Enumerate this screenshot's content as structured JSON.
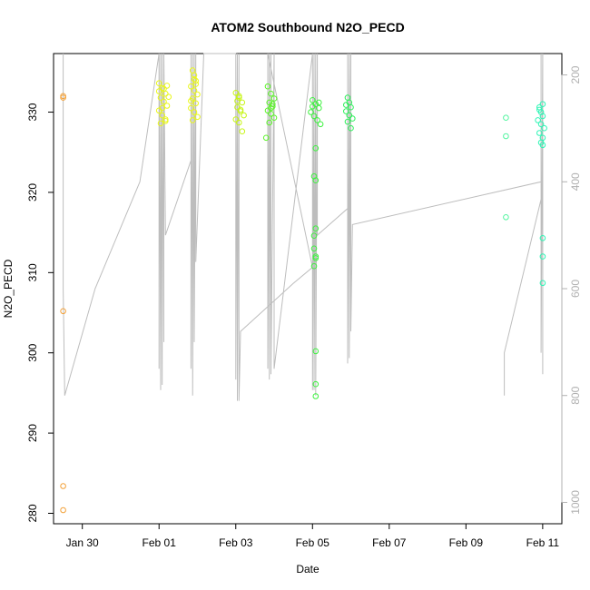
{
  "chart_data": {
    "type": "scatter",
    "title": "ATOM2 Southbound N2O_PECD",
    "xlabel": "Date",
    "ylabel": "N2O_PECD",
    "xlim": [
      "2016-01-29 06:00",
      "2016-02-11 12:00"
    ],
    "ylim": [
      278.7,
      337.3
    ],
    "y2lim": [
      1040,
      160
    ],
    "y2_reversed": true,
    "x_ticks": [
      {
        "value": "2016-01-30",
        "label": "Jan 30"
      },
      {
        "value": "2016-02-01",
        "label": "Feb 01"
      },
      {
        "value": "2016-02-03",
        "label": "Feb 03"
      },
      {
        "value": "2016-02-05",
        "label": "Feb 05"
      },
      {
        "value": "2016-02-07",
        "label": "Feb 07"
      },
      {
        "value": "2016-02-09",
        "label": "Feb 09"
      },
      {
        "value": "2016-02-11",
        "label": "Feb 11"
      }
    ],
    "y_ticks": [
      280,
      290,
      300,
      310,
      320,
      330
    ],
    "y2_ticks": [
      200,
      400,
      600,
      800,
      1000
    ],
    "grid": false,
    "legend": "none",
    "colors": {
      "points_orange": "#f2a038",
      "points_yellow": "#e9f71a",
      "points_yellowgreen": "#c7f516",
      "points_green": "#5cf52a",
      "points_green2": "#3df23f",
      "points_green3": "#2ef05b",
      "points_mint": "#52f5a0",
      "points_cyan": "#2ef5b5",
      "pressure_line": "#bdbdbd",
      "axis": "#000000",
      "right_axis": "#b0b0b0"
    },
    "series": [
      {
        "color": "#f2a038",
        "points": [
          [
            "2016-01-29 12:00",
            332.0
          ],
          [
            "2016-01-29 12:00",
            331.8
          ],
          [
            "2016-01-29 12:00",
            305.2
          ],
          [
            "2016-01-29 12:00",
            283.4
          ],
          [
            "2016-01-29 12:00",
            280.4
          ]
        ]
      },
      {
        "color": "#e9f71a",
        "points": [
          [
            "2016-02-01 00:00",
            333.6
          ],
          [
            "2016-02-01 02:00",
            333.0
          ],
          [
            "2016-02-01 04:00",
            332.3
          ],
          [
            "2016-02-01 01:00",
            331.8
          ],
          [
            "2016-02-01 03:00",
            331.3
          ],
          [
            "2016-02-01 05:00",
            330.8
          ],
          [
            "2016-02-01 00:00",
            330.2
          ],
          [
            "2016-02-01 02:00",
            329.6
          ],
          [
            "2016-02-01 04:00",
            329.1
          ],
          [
            "2016-02-01 01:00",
            328.6
          ],
          [
            "2016-02-01 03:00",
            332.9
          ],
          [
            "2016-02-01 05:00",
            333.3
          ],
          [
            "2016-02-01 06:00",
            331.9
          ],
          [
            "2016-02-01 02:00",
            330.5
          ],
          [
            "2016-02-01 00:00",
            332.6
          ],
          [
            "2016-02-01 04:00",
            328.9
          ]
        ]
      },
      {
        "color": "#e9f71a",
        "points": [
          [
            "2016-02-01 21:00",
            335.2
          ],
          [
            "2016-02-01 22:00",
            334.6
          ],
          [
            "2016-02-01 23:00",
            333.9
          ],
          [
            "2016-02-01 20:00",
            333.2
          ],
          [
            "2016-02-01 22:00",
            332.7
          ],
          [
            "2016-02-02 00:00",
            332.2
          ],
          [
            "2016-02-01 21:00",
            331.7
          ],
          [
            "2016-02-01 23:00",
            331.1
          ],
          [
            "2016-02-01 20:00",
            330.5
          ],
          [
            "2016-02-01 22:00",
            330.0
          ],
          [
            "2016-02-02 00:00",
            329.4
          ],
          [
            "2016-02-01 21:00",
            329.0
          ],
          [
            "2016-02-01 23:00",
            333.5
          ],
          [
            "2016-02-01 20:00",
            331.4
          ],
          [
            "2016-02-01 22:00",
            334.1
          ]
        ]
      },
      {
        "color": "#c7f516",
        "points": [
          [
            "2016-02-03 00:00",
            332.4
          ],
          [
            "2016-02-03 02:00",
            331.8
          ],
          [
            "2016-02-03 04:00",
            331.2
          ],
          [
            "2016-02-03 01:00",
            330.6
          ],
          [
            "2016-02-03 03:00",
            330.1
          ],
          [
            "2016-02-03 05:00",
            329.6
          ],
          [
            "2016-02-03 00:00",
            329.1
          ],
          [
            "2016-02-03 02:00",
            328.7
          ],
          [
            "2016-02-03 04:00",
            327.6
          ],
          [
            "2016-02-03 01:00",
            331.4
          ],
          [
            "2016-02-03 03:00",
            330.3
          ],
          [
            "2016-02-03 02:00",
            332.0
          ]
        ]
      },
      {
        "color": "#5cf52a",
        "points": [
          [
            "2016-02-03 20:00",
            333.2
          ],
          [
            "2016-02-03 22:00",
            332.3
          ],
          [
            "2016-02-04 00:00",
            331.7
          ],
          [
            "2016-02-03 21:00",
            331.2
          ],
          [
            "2016-02-03 23:00",
            330.7
          ],
          [
            "2016-02-03 20:00",
            330.2
          ],
          [
            "2016-02-03 22:00",
            329.8
          ],
          [
            "2016-02-04 00:00",
            329.3
          ],
          [
            "2016-02-03 21:00",
            328.7
          ],
          [
            "2016-02-03 19:00",
            326.8
          ],
          [
            "2016-02-03 23:00",
            331.0
          ],
          [
            "2016-02-03 22:00",
            330.5
          ]
        ]
      },
      {
        "color": "#3df23f",
        "points": [
          [
            "2016-02-05 00:00",
            331.5
          ],
          [
            "2016-02-05 02:00",
            331.0
          ],
          [
            "2016-02-05 04:00",
            330.5
          ],
          [
            "2016-02-04 23:00",
            330.0
          ],
          [
            "2016-02-05 01:00",
            329.5
          ],
          [
            "2016-02-05 03:00",
            329.0
          ],
          [
            "2016-02-05 05:00",
            328.5
          ],
          [
            "2016-02-05 02:00",
            325.5
          ],
          [
            "2016-02-05 01:00",
            322.0
          ],
          [
            "2016-02-05 02:00",
            321.5
          ],
          [
            "2016-02-05 02:00",
            315.5
          ],
          [
            "2016-02-05 01:00",
            314.6
          ],
          [
            "2016-02-05 01:00",
            313.0
          ],
          [
            "2016-02-05 02:00",
            312.0
          ],
          [
            "2016-02-05 02:00",
            311.8
          ],
          [
            "2016-02-05 01:00",
            310.8
          ],
          [
            "2016-02-05 02:00",
            300.2
          ],
          [
            "2016-02-05 02:00",
            296.1
          ],
          [
            "2016-02-05 02:00",
            294.6
          ],
          [
            "2016-02-05 04:00",
            331.2
          ],
          [
            "2016-02-05 00:00",
            330.7
          ]
        ]
      },
      {
        "color": "#2ef05b",
        "points": [
          [
            "2016-02-05 22:00",
            331.8
          ],
          [
            "2016-02-05 23:00",
            331.2
          ],
          [
            "2016-02-06 00:00",
            330.6
          ],
          [
            "2016-02-05 21:00",
            330.1
          ],
          [
            "2016-02-05 23:00",
            329.6
          ],
          [
            "2016-02-06 01:00",
            329.2
          ],
          [
            "2016-02-05 22:00",
            328.8
          ],
          [
            "2016-02-06 00:00",
            328.0
          ],
          [
            "2016-02-05 21:00",
            330.9
          ]
        ]
      },
      {
        "color": "#52f5a0",
        "points": [
          [
            "2016-02-10 01:00",
            329.3
          ],
          [
            "2016-02-10 01:00",
            327.0
          ],
          [
            "2016-02-10 01:00",
            316.9
          ]
        ]
      },
      {
        "color": "#2ef5b5",
        "points": [
          [
            "2016-02-10 22:00",
            330.6
          ],
          [
            "2016-02-10 23:00",
            330.0
          ],
          [
            "2016-02-11 00:00",
            329.5
          ],
          [
            "2016-02-10 21:00",
            329.0
          ],
          [
            "2016-02-10 23:00",
            328.5
          ],
          [
            "2016-02-11 01:00",
            328.0
          ],
          [
            "2016-02-10 22:00",
            327.4
          ],
          [
            "2016-02-11 00:00",
            326.8
          ],
          [
            "2016-02-10 23:00",
            326.2
          ],
          [
            "2016-02-11 00:00",
            325.9
          ],
          [
            "2016-02-10 22:00",
            330.3
          ],
          [
            "2016-02-11 00:00",
            331.0
          ],
          [
            "2016-02-11 00:00",
            314.3
          ],
          [
            "2016-02-11 00:00",
            312.0
          ],
          [
            "2016-02-11 00:00",
            308.7
          ]
        ]
      }
    ],
    "pressure_track": [
      [
        "2016-01-29 12:00",
        160
      ],
      [
        "2016-01-29 12:00",
        600
      ],
      [
        "2016-01-29 13:00",
        800
      ],
      [
        "2016-01-30 08:00",
        600
      ],
      [
        "2016-01-31 12:00",
        400
      ],
      [
        "2016-02-01 00:00",
        160
      ],
      [
        "2016-02-01 00:00",
        750
      ],
      [
        "2016-02-01 00:00",
        160
      ],
      [
        "2016-02-01 01:00",
        790
      ],
      [
        "2016-02-01 01:00",
        160
      ],
      [
        "2016-02-01 02:00",
        780
      ],
      [
        "2016-02-01 02:00",
        160
      ],
      [
        "2016-02-01 03:00",
        700
      ],
      [
        "2016-02-01 03:00",
        160
      ],
      [
        "2016-02-01 04:00",
        500
      ],
      [
        "2016-02-01 20:00",
        360
      ],
      [
        "2016-02-01 20:00",
        160
      ],
      [
        "2016-02-01 20:00",
        750
      ],
      [
        "2016-02-01 21:00",
        160
      ],
      [
        "2016-02-01 21:00",
        800
      ],
      [
        "2016-02-01 22:00",
        160
      ],
      [
        "2016-02-01 22:00",
        700
      ],
      [
        "2016-02-01 23:00",
        160
      ],
      [
        "2016-02-01 23:00",
        550
      ],
      [
        "2016-02-02 04:00",
        160
      ],
      [
        "2016-02-03 00:00",
        160
      ],
      [
        "2016-02-03 00:00",
        770
      ],
      [
        "2016-02-03 01:00",
        160
      ],
      [
        "2016-02-03 01:00",
        810
      ],
      [
        "2016-02-03 02:00",
        160
      ],
      [
        "2016-02-03 02:00",
        810
      ],
      [
        "2016-02-03 03:00",
        680
      ],
      [
        "2016-02-04 12:00",
        590
      ],
      [
        "2016-02-05 00:00",
        560
      ],
      [
        "2016-02-03 20:00",
        160
      ],
      [
        "2016-02-03 20:00",
        750
      ],
      [
        "2016-02-03 21:00",
        160
      ],
      [
        "2016-02-03 21:00",
        770
      ],
      [
        "2016-02-03 22:00",
        160
      ],
      [
        "2016-02-03 22:00",
        760
      ],
      [
        "2016-02-04 00:00",
        160
      ],
      [
        "2016-02-04 00:00",
        750
      ],
      [
        "2016-02-05 00:00",
        160
      ],
      [
        "2016-02-05 00:00",
        790
      ],
      [
        "2016-02-05 01:00",
        160
      ],
      [
        "2016-02-05 01:00",
        790
      ],
      [
        "2016-02-05 02:00",
        160
      ],
      [
        "2016-02-05 02:00",
        800
      ],
      [
        "2016-02-05 03:00",
        160
      ],
      [
        "2016-02-05 03:00",
        500
      ],
      [
        "2016-02-05 22:00",
        450
      ],
      [
        "2016-02-05 22:00",
        160
      ],
      [
        "2016-02-05 22:00",
        740
      ],
      [
        "2016-02-05 23:00",
        160
      ],
      [
        "2016-02-05 23:00",
        730
      ],
      [
        "2016-02-06 00:00",
        160
      ],
      [
        "2016-02-06 00:00",
        680
      ],
      [
        "2016-02-06 01:00",
        480
      ],
      [
        "2016-02-10 23:00",
        400
      ],
      [
        "2016-02-10 23:00",
        160
      ],
      [
        "2016-02-10 23:00",
        720
      ],
      [
        "2016-02-11 00:00",
        160
      ],
      [
        "2016-02-11 00:00",
        760
      ],
      [
        "2016-02-11 00:00",
        420
      ],
      [
        "2016-02-10 00:00",
        720
      ],
      [
        "2016-02-10 00:00",
        800
      ]
    ]
  }
}
